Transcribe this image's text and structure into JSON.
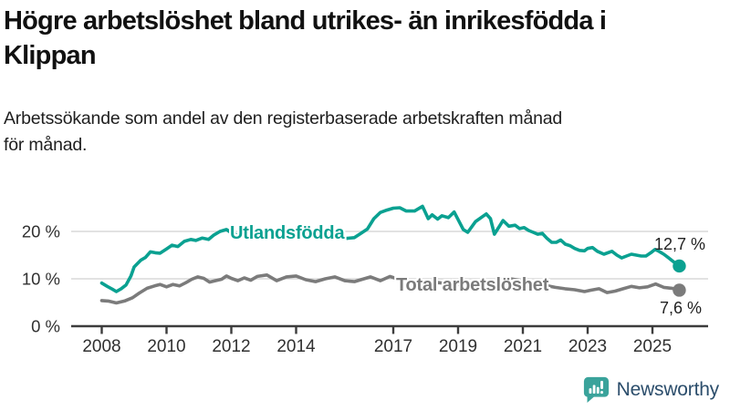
{
  "header": {
    "title_line1": "Högre arbetslöshet bland utrikes- än inrikesfödda i",
    "title_line2": "Klippan",
    "subtitle_line1": "Arbetssökande som andel av den registerbaserade arbetskraften månad",
    "subtitle_line2": "för månad."
  },
  "colors": {
    "teal": "#0aa191",
    "gray": "#7b7b7b",
    "grid": "#d9d9d9",
    "axis": "#3c3c3c",
    "tick_text": "#303030",
    "logo_teal": "#3aa39b",
    "brand_navy": "#2b4d6b"
  },
  "chart_data": {
    "type": "line",
    "title": "Högre arbetslöshet bland utrikes- än inrikesfödda i Klippan",
    "subtitle": "Arbetssökande som andel av den registerbaserade arbetskraften månad för månad.",
    "xlabel": "",
    "ylabel": "",
    "unit": "%",
    "x_range": [
      2007.1,
      2026.7
    ],
    "ylim": [
      0,
      27
    ],
    "grid": "horizontal-only",
    "legend_position": "inline-labels",
    "y_ticks": [
      {
        "value": 0,
        "label": "0 %"
      },
      {
        "value": 10,
        "label": "10 %"
      },
      {
        "value": 20,
        "label": "20 %"
      }
    ],
    "x_ticks": [
      {
        "year": 2008,
        "label": "2008"
      },
      {
        "year": 2010,
        "label": "2010"
      },
      {
        "year": 2012,
        "label": "2012"
      },
      {
        "year": 2014,
        "label": "2014"
      },
      {
        "year": 2017,
        "label": "2017"
      },
      {
        "year": 2019,
        "label": "2019"
      },
      {
        "year": 2021,
        "label": "2021"
      },
      {
        "year": 2023,
        "label": "2023"
      },
      {
        "year": 2025,
        "label": "2025"
      }
    ],
    "series": [
      {
        "name": "Utlandsfödda",
        "color": "#0aa191",
        "end_label": "12,7 %",
        "end_value": 12.7,
        "points": [
          [
            2008.0,
            9.1
          ],
          [
            2008.17,
            8.4
          ],
          [
            2008.33,
            7.8
          ],
          [
            2008.45,
            7.3
          ],
          [
            2008.6,
            7.9
          ],
          [
            2008.75,
            8.7
          ],
          [
            2008.9,
            10.6
          ],
          [
            2009.0,
            12.5
          ],
          [
            2009.2,
            13.9
          ],
          [
            2009.35,
            14.5
          ],
          [
            2009.5,
            15.7
          ],
          [
            2009.65,
            15.5
          ],
          [
            2009.8,
            15.4
          ],
          [
            2010.0,
            16.3
          ],
          [
            2010.17,
            17.1
          ],
          [
            2010.35,
            16.8
          ],
          [
            2010.55,
            17.9
          ],
          [
            2010.75,
            18.3
          ],
          [
            2010.9,
            18.1
          ],
          [
            2011.1,
            18.6
          ],
          [
            2011.3,
            18.3
          ],
          [
            2011.45,
            19.2
          ],
          [
            2011.65,
            20.0
          ],
          [
            2011.85,
            20.4
          ],
          [
            2012.0,
            19.7
          ],
          [
            2012.2,
            19.2
          ],
          [
            2012.4,
            19.7
          ],
          [
            2012.6,
            19.4
          ],
          [
            2012.9,
            18.6
          ],
          [
            2013.2,
            19.9
          ],
          [
            2013.5,
            19.4
          ],
          [
            2013.9,
            20.0
          ],
          [
            2014.2,
            19.6
          ],
          [
            2014.5,
            18.9
          ],
          [
            2014.9,
            19.2
          ],
          [
            2015.2,
            18.7
          ],
          [
            2015.5,
            18.5
          ],
          [
            2015.8,
            18.7
          ],
          [
            2016.0,
            19.6
          ],
          [
            2016.2,
            20.5
          ],
          [
            2016.4,
            22.7
          ],
          [
            2016.6,
            24.0
          ],
          [
            2016.8,
            24.5
          ],
          [
            2017.0,
            24.9
          ],
          [
            2017.2,
            25.0
          ],
          [
            2017.4,
            24.3
          ],
          [
            2017.66,
            24.3
          ],
          [
            2017.9,
            25.3
          ],
          [
            2018.08,
            22.7
          ],
          [
            2018.2,
            23.5
          ],
          [
            2018.37,
            22.6
          ],
          [
            2018.5,
            23.3
          ],
          [
            2018.7,
            22.9
          ],
          [
            2018.88,
            24.1
          ],
          [
            2019.16,
            20.4
          ],
          [
            2019.3,
            19.8
          ],
          [
            2019.54,
            22.1
          ],
          [
            2019.87,
            23.7
          ],
          [
            2020.0,
            22.7
          ],
          [
            2020.12,
            19.4
          ],
          [
            2020.39,
            22.3
          ],
          [
            2020.57,
            21.1
          ],
          [
            2020.76,
            21.3
          ],
          [
            2020.9,
            20.6
          ],
          [
            2021.04,
            20.8
          ],
          [
            2021.18,
            20.2
          ],
          [
            2021.32,
            19.8
          ],
          [
            2021.46,
            19.4
          ],
          [
            2021.6,
            19.6
          ],
          [
            2021.75,
            18.5
          ],
          [
            2021.89,
            17.7
          ],
          [
            2022.03,
            17.7
          ],
          [
            2022.17,
            18.2
          ],
          [
            2022.31,
            17.3
          ],
          [
            2022.45,
            17.0
          ],
          [
            2022.6,
            16.4
          ],
          [
            2022.75,
            16.0
          ],
          [
            2022.9,
            15.9
          ],
          [
            2023.0,
            16.4
          ],
          [
            2023.15,
            16.6
          ],
          [
            2023.3,
            15.8
          ],
          [
            2023.5,
            15.2
          ],
          [
            2023.75,
            15.8
          ],
          [
            2023.9,
            15.0
          ],
          [
            2024.05,
            14.4
          ],
          [
            2024.2,
            14.8
          ],
          [
            2024.35,
            15.2
          ],
          [
            2024.5,
            15.0
          ],
          [
            2024.65,
            14.8
          ],
          [
            2024.8,
            14.8
          ],
          [
            2024.95,
            15.5
          ],
          [
            2025.08,
            16.2
          ],
          [
            2025.2,
            15.8
          ],
          [
            2025.35,
            15.2
          ],
          [
            2025.5,
            14.4
          ],
          [
            2025.65,
            13.6
          ],
          [
            2025.83,
            12.7
          ]
        ]
      },
      {
        "name": "Total arbetslöshet",
        "color": "#7b7b7b",
        "end_label": "7,6 %",
        "end_value": 7.6,
        "points": [
          [
            2008.0,
            5.4
          ],
          [
            2008.2,
            5.3
          ],
          [
            2008.45,
            4.9
          ],
          [
            2008.7,
            5.3
          ],
          [
            2008.95,
            6.0
          ],
          [
            2009.16,
            7.0
          ],
          [
            2009.4,
            8.0
          ],
          [
            2009.63,
            8.5
          ],
          [
            2009.8,
            8.8
          ],
          [
            2010.0,
            8.3
          ],
          [
            2010.2,
            8.8
          ],
          [
            2010.4,
            8.5
          ],
          [
            2010.6,
            9.2
          ],
          [
            2010.78,
            9.9
          ],
          [
            2010.96,
            10.4
          ],
          [
            2011.15,
            10.1
          ],
          [
            2011.33,
            9.3
          ],
          [
            2011.5,
            9.6
          ],
          [
            2011.7,
            9.9
          ],
          [
            2011.85,
            10.6
          ],
          [
            2012.0,
            10.1
          ],
          [
            2012.2,
            9.6
          ],
          [
            2012.4,
            10.2
          ],
          [
            2012.6,
            9.7
          ],
          [
            2012.8,
            10.5
          ],
          [
            2013.1,
            10.8
          ],
          [
            2013.4,
            9.6
          ],
          [
            2013.7,
            10.4
          ],
          [
            2014.0,
            10.6
          ],
          [
            2014.3,
            9.8
          ],
          [
            2014.6,
            9.4
          ],
          [
            2014.9,
            10.0
          ],
          [
            2015.2,
            10.4
          ],
          [
            2015.5,
            9.6
          ],
          [
            2015.8,
            9.4
          ],
          [
            2016.0,
            9.8
          ],
          [
            2016.3,
            10.4
          ],
          [
            2016.6,
            9.6
          ],
          [
            2016.9,
            10.5
          ],
          [
            2017.2,
            9.8
          ],
          [
            2017.5,
            9.3
          ],
          [
            2017.8,
            9.0
          ],
          [
            2018.1,
            8.9
          ],
          [
            2018.4,
            9.2
          ],
          [
            2018.7,
            8.9
          ],
          [
            2019.0,
            8.8
          ],
          [
            2019.3,
            8.6
          ],
          [
            2019.6,
            9.0
          ],
          [
            2019.9,
            9.1
          ],
          [
            2020.2,
            9.4
          ],
          [
            2020.45,
            10.2
          ],
          [
            2020.7,
            9.9
          ],
          [
            2020.9,
            9.7
          ],
          [
            2021.1,
            9.4
          ],
          [
            2021.4,
            9.0
          ],
          [
            2021.7,
            8.6
          ],
          [
            2022.0,
            8.2
          ],
          [
            2022.3,
            7.9
          ],
          [
            2022.6,
            7.7
          ],
          [
            2022.9,
            7.3
          ],
          [
            2023.1,
            7.6
          ],
          [
            2023.35,
            7.9
          ],
          [
            2023.6,
            7.1
          ],
          [
            2023.85,
            7.4
          ],
          [
            2024.1,
            7.9
          ],
          [
            2024.35,
            8.4
          ],
          [
            2024.6,
            8.1
          ],
          [
            2024.85,
            8.3
          ],
          [
            2025.1,
            8.9
          ],
          [
            2025.35,
            8.2
          ],
          [
            2025.6,
            8.0
          ],
          [
            2025.83,
            7.6
          ]
        ]
      }
    ]
  },
  "footer": {
    "brand": "Newsworthy",
    "logo_icon": "bar-chart-speech-bubble-icon"
  }
}
